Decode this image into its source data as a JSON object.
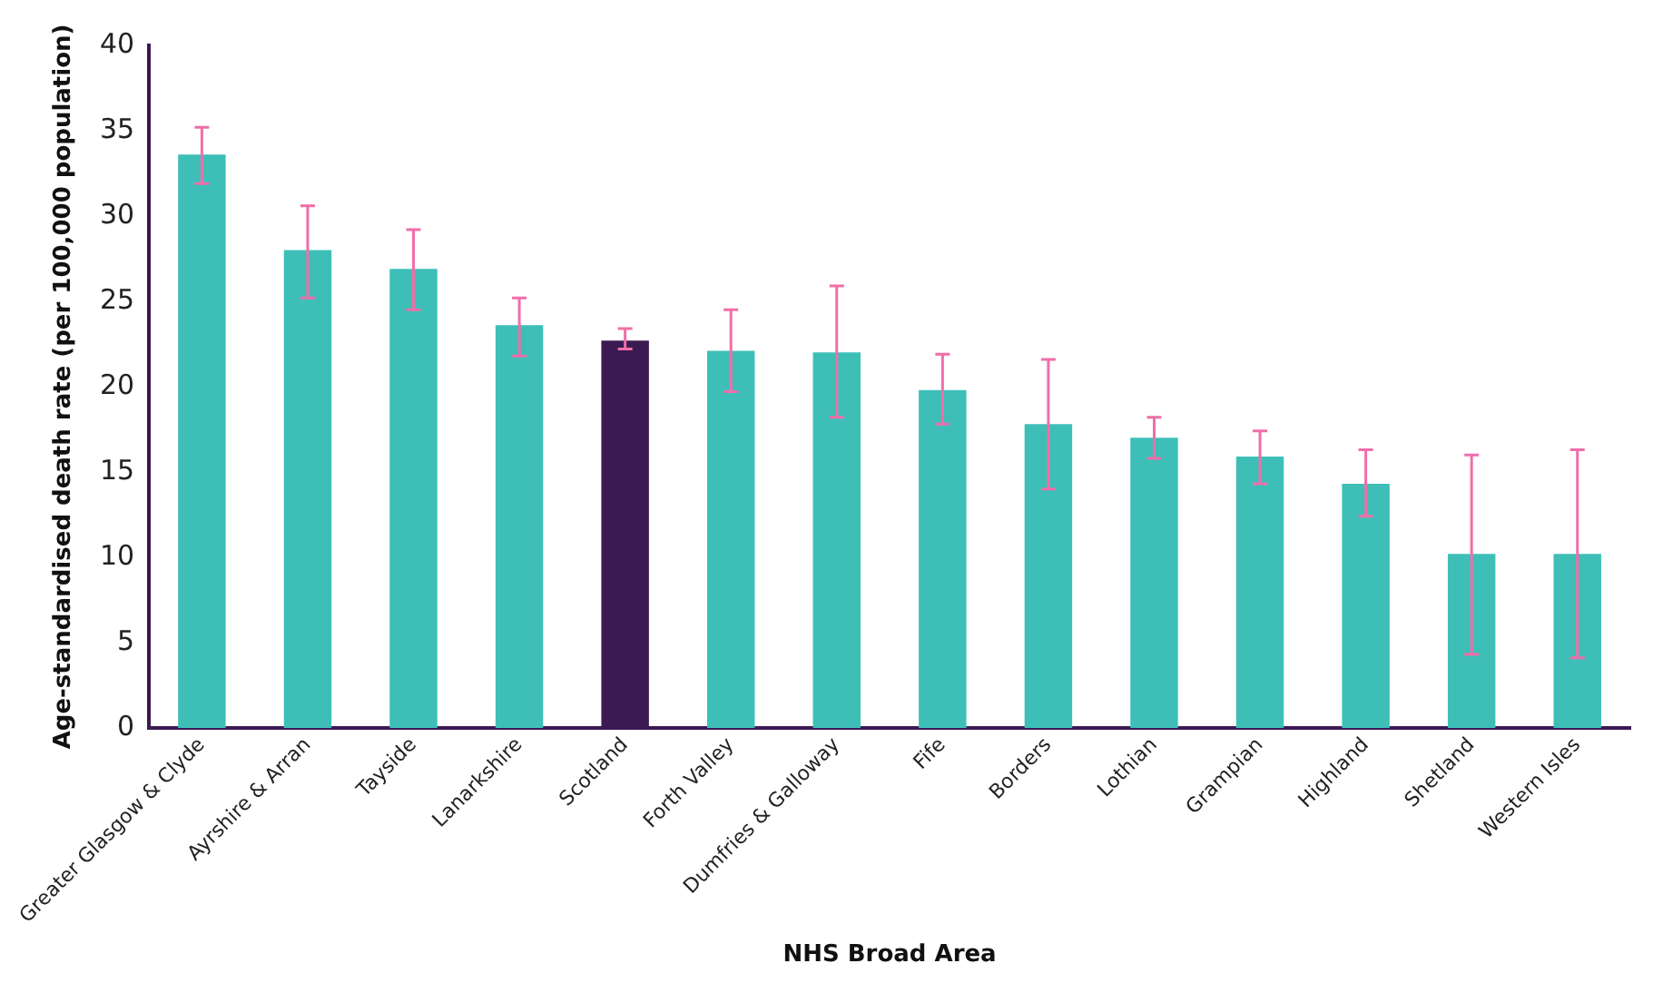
{
  "chart_data": {
    "type": "bar",
    "xlabel": "NHS Broad Area",
    "ylabel": "Age-standardised death rate (per 100,000 population)",
    "categories": [
      "Greater Glasgow & Clyde",
      "Ayrshire & Arran",
      "Tayside",
      "Lanarkshire",
      "Scotland",
      "Forth Valley",
      "Dumfries & Galloway",
      "Fife",
      "Borders",
      "Lothian",
      "Grampian",
      "Highland",
      "Shetland",
      "Western Isles"
    ],
    "values": [
      33.6,
      28.0,
      26.9,
      23.6,
      22.7,
      22.1,
      22.0,
      19.8,
      17.8,
      17.0,
      15.9,
      14.3,
      10.2,
      10.2
    ],
    "colors": [
      "#3dbfb8",
      "#3dbfb8",
      "#3dbfb8",
      "#3dbfb8",
      "#3b1a52",
      "#3dbfb8",
      "#3dbfb8",
      "#3dbfb8",
      "#3dbfb8",
      "#3dbfb8",
      "#3dbfb8",
      "#3dbfb8",
      "#3dbfb8",
      "#3dbfb8"
    ],
    "errors": [
      [
        31.9,
        35.2
      ],
      [
        25.2,
        30.6
      ],
      [
        24.5,
        29.2
      ],
      [
        21.8,
        25.2
      ],
      [
        22.2,
        23.4
      ],
      [
        19.7,
        24.5
      ],
      [
        18.2,
        25.9
      ],
      [
        17.8,
        21.9
      ],
      [
        14.0,
        21.6
      ],
      [
        15.8,
        18.2
      ],
      [
        14.3,
        17.4
      ],
      [
        12.4,
        16.3
      ],
      [
        4.3,
        16.0
      ],
      [
        4.1,
        16.3
      ]
    ],
    "ylim": [
      0,
      40
    ],
    "yticks": [
      0,
      5,
      10,
      15,
      20,
      25,
      30,
      35,
      40
    ],
    "grid": false,
    "legend": false
  }
}
